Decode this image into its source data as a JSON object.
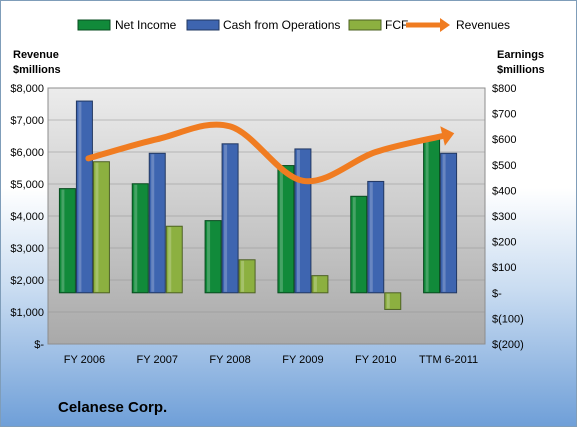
{
  "company": "Celanese Corp.",
  "chart_data": {
    "type": "bar",
    "categories": [
      "FY 2006",
      "FY 2007",
      "FY 2008",
      "FY 2009",
      "FY 2010",
      "TTM 6-2011"
    ],
    "series": [
      {
        "name": "Net Income",
        "axis": "right",
        "color": "#118a3a",
        "values": [
          407,
          426,
          282,
          497,
          377,
          605
        ]
      },
      {
        "name": "Cash from Operations",
        "axis": "right",
        "color": "#3e65b0",
        "values": [
          749,
          545,
          582,
          562,
          435,
          545
        ]
      },
      {
        "name": "FCF",
        "axis": "right",
        "color": "#8cb040",
        "values": [
          512,
          260,
          129,
          67,
          -65,
          null
        ]
      },
      {
        "name": "Revenues",
        "axis": "left",
        "type": "line",
        "color": "#f07c21",
        "values": [
          5800,
          6400,
          6800,
          5100,
          6000,
          6500
        ]
      }
    ],
    "left_axis": {
      "title": [
        "Revenue",
        "$millions"
      ],
      "ylim": [
        0,
        8000
      ],
      "ticks": [
        "$-",
        "$1,000",
        "$2,000",
        "$3,000",
        "$4,000",
        "$5,000",
        "$6,000",
        "$7,000",
        "$8,000"
      ]
    },
    "right_axis": {
      "title": [
        "Earnings",
        "$millions"
      ],
      "ylim": [
        -200,
        800
      ],
      "ticks": [
        "$(200)",
        "$(100)",
        "$-",
        "$100",
        "$200",
        "$300",
        "$400",
        "$500",
        "$600",
        "$700",
        "$800"
      ]
    },
    "legend_position": "top",
    "grid": true,
    "plot_background": "#c0c0c0"
  }
}
